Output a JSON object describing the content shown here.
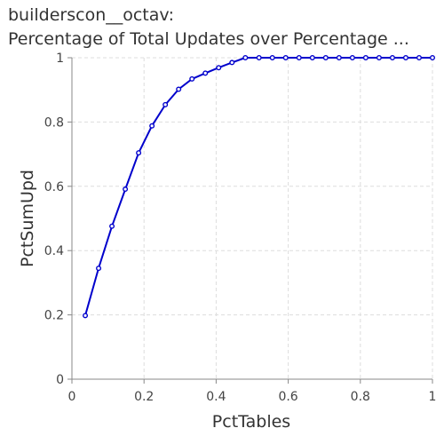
{
  "chart_data": {
    "type": "line",
    "title_line1": "builderscon__octav:",
    "title_line2": "Percentage of Total Updates over Percentage ...",
    "xlabel": "PctTables",
    "ylabel": "PctSumUpd",
    "xlim": [
      0,
      1
    ],
    "ylim": [
      0,
      1
    ],
    "xticks": [
      "0",
      "0.2",
      "0.4",
      "0.6",
      "0.8",
      "1"
    ],
    "yticks": [
      "0",
      "0.2",
      "0.4",
      "0.6",
      "0.8",
      "1"
    ],
    "grid": true,
    "line_color": "#0000cc",
    "series": [
      {
        "x": [
          0.037,
          0.074,
          0.111,
          0.148,
          0.185,
          0.222,
          0.259,
          0.296,
          0.333,
          0.37,
          0.407,
          0.444,
          0.481,
          0.519,
          0.556,
          0.593,
          0.63,
          0.667,
          0.704,
          0.741,
          0.778,
          0.815,
          0.852,
          0.889,
          0.926,
          0.963,
          1.0
        ],
        "y": [
          0.198,
          0.345,
          0.476,
          0.591,
          0.704,
          0.788,
          0.854,
          0.902,
          0.934,
          0.952,
          0.969,
          0.985,
          1.0,
          1.0,
          1.0,
          1.0,
          1.0,
          1.0,
          1.0,
          1.0,
          1.0,
          1.0,
          1.0,
          1.0,
          1.0,
          1.0,
          1.0
        ]
      }
    ]
  }
}
